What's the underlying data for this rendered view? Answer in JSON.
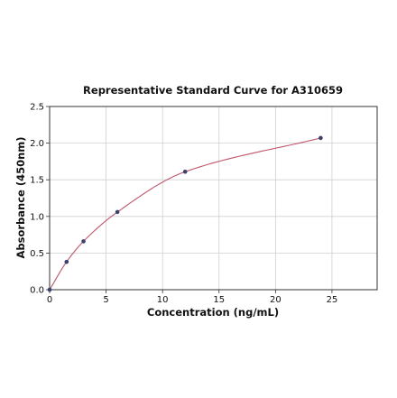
{
  "chart_data": {
    "type": "scatter",
    "title": "Representative Standard Curve for A310659",
    "xlabel": "Concentration (ng/mL)",
    "ylabel": "Absorbance (450nm)",
    "xlim": [
      0,
      29
    ],
    "ylim": [
      0,
      2.5
    ],
    "xticks": [
      "0",
      "5",
      "10",
      "15",
      "20",
      "25"
    ],
    "yticks": [
      "0.0",
      "0.5",
      "1.0",
      "1.5",
      "2.0",
      "2.5"
    ],
    "grid": true,
    "legend": "none",
    "series": [
      {
        "points": [
          {
            "x": 0,
            "y": 0.0
          },
          {
            "x": 1.5,
            "y": 0.38
          },
          {
            "x": 3,
            "y": 0.66
          },
          {
            "x": 6,
            "y": 1.06
          },
          {
            "x": 12,
            "y": 1.61
          },
          {
            "x": 24,
            "y": 2.07
          }
        ],
        "marker_color": "#3b3f6b",
        "fit_curve": "4PL",
        "fit_color": "#c0566b"
      }
    ]
  }
}
